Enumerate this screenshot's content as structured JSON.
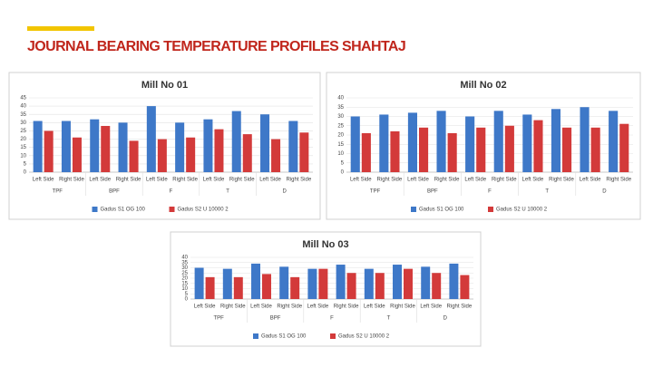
{
  "header": {
    "title": "JOURNAL BEARING TEMPERATURE PROFILES  SHAHTAJ"
  },
  "chart_data": [
    {
      "type": "bar",
      "title": "Mill No 01",
      "categories": [
        "Left Side",
        "Right Side",
        "Left Side",
        "Right Side",
        "Left Side",
        "Right Side",
        "Left Side",
        "Right Side",
        "Left Side",
        "Right Side"
      ],
      "groups": [
        "TPF",
        "BPF",
        "F",
        "T",
        "D"
      ],
      "series": [
        {
          "name": "Gadus S1 OG 100",
          "color": "#3e78c8",
          "values": [
            31,
            31,
            32,
            30,
            40,
            30,
            32,
            37,
            35,
            31
          ]
        },
        {
          "name": "Gadus S2 U 10000 2",
          "color": "#d33a3a",
          "values": [
            25,
            21,
            28,
            19,
            20,
            21,
            26,
            23,
            20,
            24
          ]
        }
      ],
      "ylim": [
        0,
        45
      ],
      "yticks": [
        0,
        5,
        10,
        15,
        20,
        25,
        30,
        35,
        40,
        45
      ],
      "grid": true,
      "legend": "bottom"
    },
    {
      "type": "bar",
      "title": "Mill No 02",
      "categories": [
        "Left Side",
        "Right Side",
        "Left Side",
        "Right Side",
        "Left Side",
        "Right Side",
        "Left Side",
        "Right Side",
        "Left Side",
        "Right Side"
      ],
      "groups": [
        "TPF",
        "BPF",
        "F",
        "T",
        "D"
      ],
      "series": [
        {
          "name": "Gadus S1 OG 100",
          "color": "#3e78c8",
          "values": [
            30,
            31,
            32,
            33,
            30,
            33,
            31,
            34,
            35,
            33
          ]
        },
        {
          "name": "Gadus S2 U 10000 2",
          "color": "#d33a3a",
          "values": [
            21,
            22,
            24,
            21,
            24,
            25,
            28,
            24,
            24,
            26
          ]
        }
      ],
      "ylim": [
        0,
        40
      ],
      "yticks": [
        0,
        5,
        10,
        15,
        20,
        25,
        30,
        35,
        40
      ],
      "grid": true,
      "legend": "bottom"
    },
    {
      "type": "bar",
      "title": "Mill No 03",
      "categories": [
        "Left Side",
        "Right Side",
        "Left Side",
        "Right Side",
        "Left Side",
        "Right Side",
        "Left Side",
        "Right Side",
        "Left Side",
        "Right Side"
      ],
      "groups": [
        "TPF",
        "BPF",
        "F",
        "T",
        "D"
      ],
      "series": [
        {
          "name": "Gadus S1 OG 100",
          "color": "#3e78c8",
          "values": [
            30,
            29,
            34,
            31,
            29,
            33,
            29,
            33,
            31,
            34
          ]
        },
        {
          "name": "Gadus S2 U 10000 2",
          "color": "#d33a3a",
          "values": [
            21,
            21,
            24,
            21,
            29,
            25,
            25,
            29,
            25,
            23
          ]
        }
      ],
      "ylim": [
        0,
        40
      ],
      "yticks": [
        0,
        5,
        10,
        15,
        20,
        25,
        30,
        35,
        40
      ],
      "grid": true,
      "legend": "bottom"
    }
  ]
}
